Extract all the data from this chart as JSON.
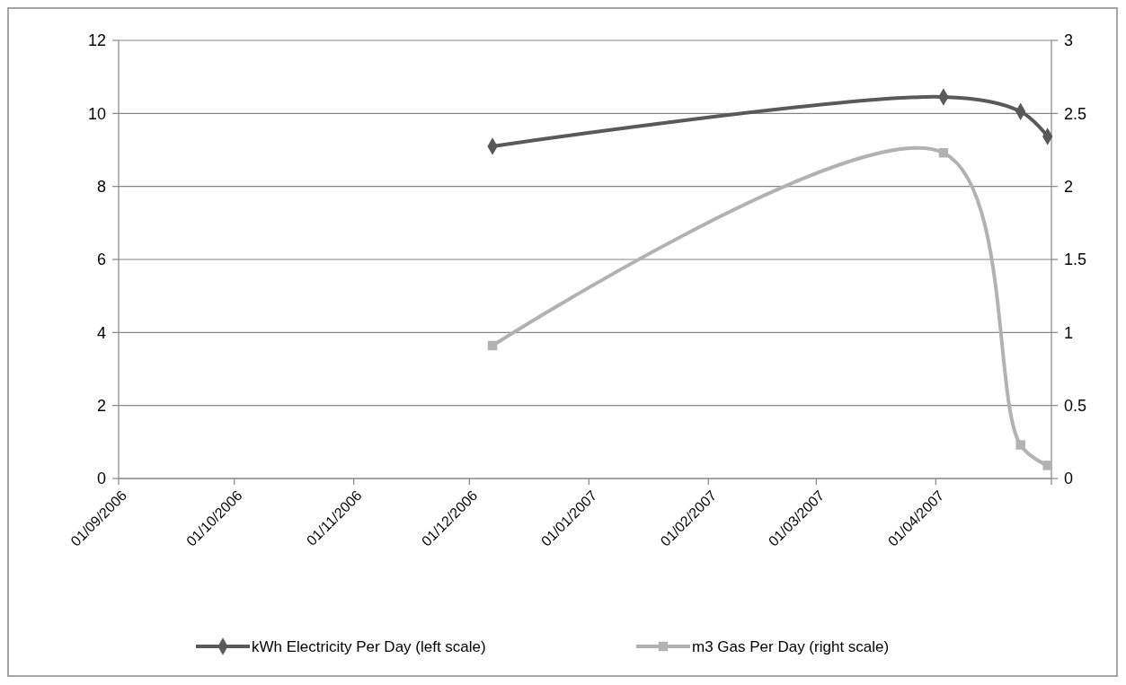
{
  "chart_data": {
    "type": "line",
    "x": [
      "2006-12-07",
      "2007-04-03",
      "2007-04-23",
      "2007-04-30"
    ],
    "series": [
      {
        "name": "kWh Electricity Per Day (left scale)",
        "color": "#595959",
        "marker": "diamond",
        "values": [
          9.1,
          10.45,
          10.05,
          9.37
        ]
      },
      {
        "name": "m3 Gas Per Day (right scale)",
        "color": "#b2b2b2",
        "marker": "square",
        "axis": "y2",
        "values": [
          0.91,
          2.23,
          0.23,
          0.09
        ]
      }
    ],
    "xlim": [
      "2006-09-01",
      "2007-05-01"
    ],
    "xticks": [
      {
        "value": "2006-09-01",
        "label": "01/09/2006"
      },
      {
        "value": "2006-10-01",
        "label": "01/10/2006"
      },
      {
        "value": "2006-11-01",
        "label": "01/11/2006"
      },
      {
        "value": "2006-12-01",
        "label": "01/12/2006"
      },
      {
        "value": "2007-01-01",
        "label": "01/01/2007"
      },
      {
        "value": "2007-02-01",
        "label": "01/02/2007"
      },
      {
        "value": "2007-03-01",
        "label": "01/03/2007"
      },
      {
        "value": "2007-04-01",
        "label": "01/04/2007"
      },
      {
        "value": "2007-05-01",
        "label": null
      }
    ],
    "ylim": [
      0,
      12
    ],
    "yticks": [
      0,
      2,
      4,
      6,
      8,
      10,
      12
    ],
    "y2lim": [
      0,
      3
    ],
    "y2ticks": [
      0,
      0.5,
      1,
      1.5,
      2,
      2.5,
      3
    ],
    "grid": "y",
    "legend": "bottom"
  }
}
